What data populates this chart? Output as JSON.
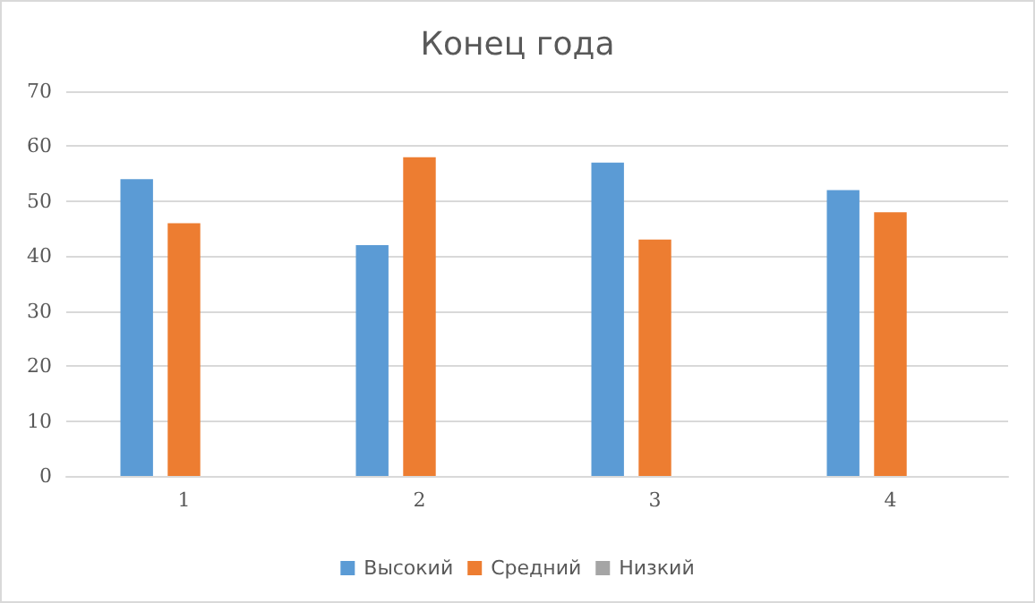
{
  "chart_data": {
    "type": "bar",
    "title": "Конец года",
    "categories": [
      "1",
      "2",
      "3",
      "4"
    ],
    "series": [
      {
        "name": "Высокий",
        "color": "#5b9bd5",
        "values": [
          54,
          42,
          57,
          52
        ]
      },
      {
        "name": "Средний",
        "color": "#ed7d31",
        "values": [
          46,
          58,
          43,
          48
        ]
      },
      {
        "name": "Низкий",
        "color": "#a5a5a5",
        "values": [
          null,
          null,
          null,
          null
        ]
      }
    ],
    "ylim": [
      0,
      70
    ],
    "yticks": [
      0,
      10,
      20,
      30,
      40,
      50,
      60,
      70
    ],
    "grid": "y",
    "legend": "bottom"
  }
}
